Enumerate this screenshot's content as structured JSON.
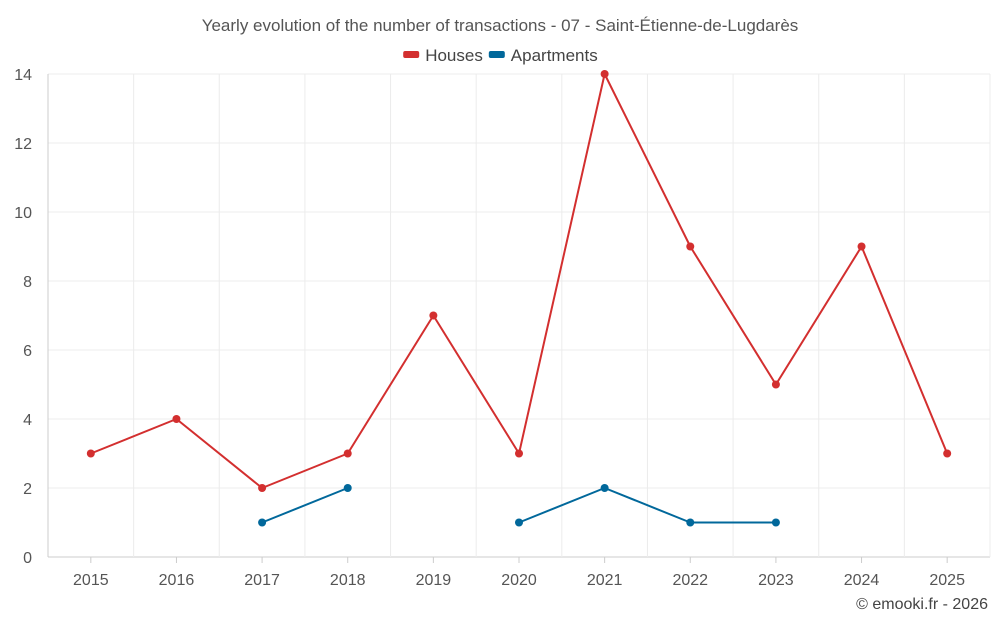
{
  "chart_data": {
    "type": "line",
    "title": "Yearly evolution of the number of transactions - 07 - Saint-Étienne-de-Lugdarès",
    "categories": [
      "2015",
      "2016",
      "2017",
      "2018",
      "2019",
      "2020",
      "2021",
      "2022",
      "2023",
      "2024",
      "2025"
    ],
    "series": [
      {
        "name": "Houses",
        "color": "#d32f2f",
        "values": [
          3,
          4,
          2,
          3,
          7,
          3,
          14,
          9,
          5,
          9,
          3
        ]
      },
      {
        "name": "Apartments",
        "color": "#01689b",
        "values": [
          null,
          null,
          1,
          2,
          null,
          1,
          2,
          1,
          1,
          null,
          null
        ]
      }
    ],
    "ylim": [
      0,
      14
    ],
    "yticks": [
      0,
      2,
      4,
      6,
      8,
      10,
      12,
      14
    ],
    "xlabel": "",
    "ylabel": "",
    "legend_position": "top-center",
    "grid": true
  },
  "footer": {
    "copyright": "© emooki.fr - 2026"
  }
}
